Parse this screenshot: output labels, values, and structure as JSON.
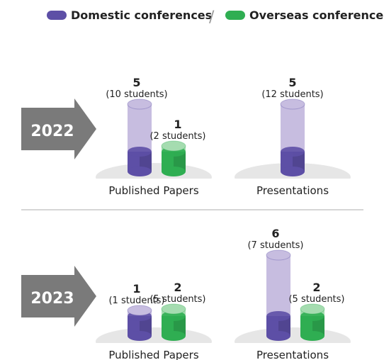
{
  "legend": {
    "domestic": "Domestic conferences",
    "overseas": "Overseas conferences",
    "separator": "/"
  },
  "colors": {
    "domestic_dark": "#5d4fa6",
    "domestic_light": "#c7bde0",
    "overseas_dark": "#2fae52",
    "overseas_light": "#a5dcb0",
    "arrow": "#7a7a7a",
    "platform": "#e6e6e6",
    "divider": "#c8c8c8"
  },
  "chart_data": {
    "type": "bar",
    "groups": [
      {
        "year": "2022",
        "panels": [
          {
            "category": "Published Papers",
            "bars": [
              {
                "series": "Domestic conferences",
                "count": 5,
                "count_label": "5",
                "students_label": "(10 students)"
              },
              {
                "series": "Overseas conferences",
                "count": 1,
                "count_label": "1",
                "students_label": "(2 students)"
              }
            ]
          },
          {
            "category": "Presentations",
            "bars": [
              {
                "series": "Domestic conferences",
                "count": 5,
                "count_label": "5",
                "students_label": "(12 students)"
              }
            ]
          }
        ]
      },
      {
        "year": "2023",
        "panels": [
          {
            "category": "Published Papers",
            "bars": [
              {
                "series": "Domestic conferences",
                "count": 1,
                "count_label": "1",
                "students_label": "(1 students)"
              },
              {
                "series": "Overseas conferences",
                "count": 2,
                "count_label": "2",
                "students_label": "(5 students)"
              }
            ]
          },
          {
            "category": "Presentations",
            "bars": [
              {
                "series": "Domestic conferences",
                "count": 6,
                "count_label": "6",
                "students_label": "(7 students)"
              },
              {
                "series": "Overseas conferences",
                "count": 2,
                "count_label": "2",
                "students_label": "(5 students)"
              }
            ]
          }
        ]
      }
    ]
  }
}
